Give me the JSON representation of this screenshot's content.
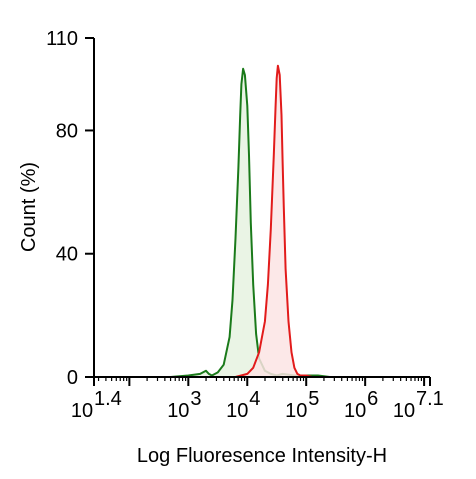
{
  "chart_data": {
    "type": "area",
    "xlabel": "Log Fluoresence Intensity-H",
    "ylabel": "Count  (%)",
    "x_scale": "log10",
    "xlim": [
      1.4,
      7.1
    ],
    "ylim": [
      0,
      110
    ],
    "yticks": [
      0,
      40,
      80,
      110
    ],
    "ytick_labels": [
      "0",
      "40",
      "80",
      "110"
    ],
    "xticks": [
      {
        "exp": 1.4,
        "base": "10",
        "sup": "1.4"
      },
      {
        "exp": 3,
        "base": "10",
        "sup": "3"
      },
      {
        "exp": 4,
        "base": "10",
        "sup": "4"
      },
      {
        "exp": 5,
        "base": "10",
        "sup": "5"
      },
      {
        "exp": 6,
        "base": "10",
        "sup": "6"
      },
      {
        "exp": 7.1,
        "base": "10",
        "sup": "7.1"
      }
    ],
    "series": [
      {
        "color": "#1a7a1a",
        "fill": "#e6f2e0",
        "x_log": [
          2.7,
          3.0,
          3.2,
          3.3,
          3.35,
          3.4,
          3.5,
          3.6,
          3.7,
          3.75,
          3.8,
          3.85,
          3.88,
          3.9,
          3.93,
          3.96,
          4.0,
          4.03,
          4.06,
          4.1,
          4.15,
          4.2,
          4.3,
          4.4,
          4.5,
          4.6,
          4.8,
          5.0,
          5.2,
          5.4
        ],
        "y": [
          0,
          0.5,
          1,
          2,
          1,
          0.5,
          1.5,
          4,
          13,
          25,
          45,
          68,
          85,
          95,
          100,
          98,
          88,
          72,
          50,
          30,
          14,
          6,
          2,
          1,
          0.5,
          1,
          0.5,
          0.5,
          0.5,
          0
        ]
      },
      {
        "color": "#e21b1b",
        "fill": "#fbe4e4",
        "x_log": [
          3.8,
          4.0,
          4.1,
          4.2,
          4.3,
          4.35,
          4.4,
          4.45,
          4.48,
          4.5,
          4.52,
          4.55,
          4.58,
          4.6,
          4.62,
          4.65,
          4.7,
          4.75,
          4.8,
          4.85,
          4.9,
          5.0,
          5.1
        ],
        "y": [
          0,
          1,
          3,
          8,
          18,
          30,
          48,
          72,
          88,
          97,
          101,
          98,
          85,
          70,
          55,
          35,
          18,
          8,
          3,
          1,
          0.5,
          0.5,
          0
        ]
      }
    ]
  }
}
